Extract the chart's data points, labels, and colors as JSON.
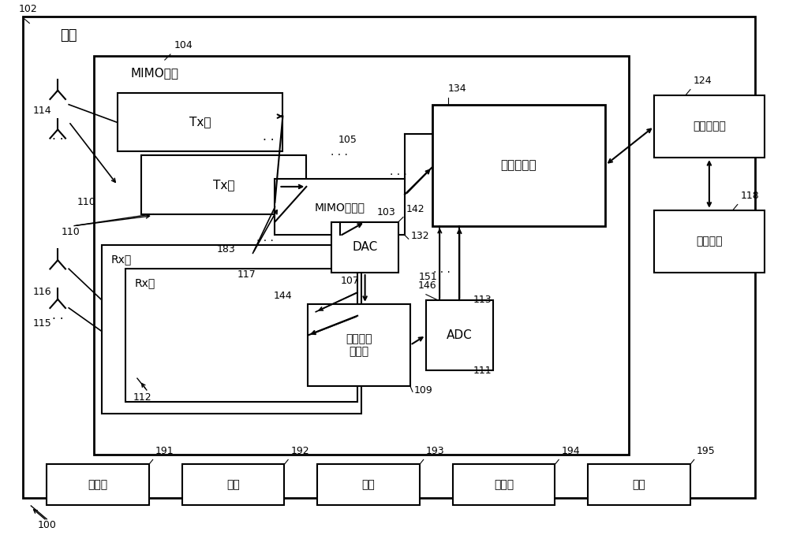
{
  "bg_color": "#ffffff",
  "line_color": "#000000",
  "labels": {
    "vehicle": "车辆",
    "mimo_radar": "MIMO雷达",
    "tx_chain": "Tx链",
    "rx_chain_outer": "Rx链",
    "rx_chain_inner": "Rx链",
    "mimo_filter": "MIMO滤波器",
    "radar_processor": "雷达处理器",
    "system_controller": "系统控制器",
    "vehicle_system": "车载系统",
    "dac": "DAC",
    "adc": "ADC",
    "analog_combiner": "模拟信号\n组合器",
    "processor": "处理器",
    "input": "输入",
    "output": "输出",
    "storage1": "存储器",
    "storage2": "存储"
  },
  "refs": {
    "r100": "100",
    "r102": "102",
    "r103": "103",
    "r104": "104",
    "r105": "105",
    "r107": "107",
    "r109": "109",
    "r110": "110",
    "r111": "111",
    "r112": "112",
    "r113": "113",
    "r114": "114",
    "r115": "115",
    "r116": "116",
    "r117": "117",
    "r118": "118",
    "r124": "124",
    "r132": "132",
    "r134": "134",
    "r142": "142",
    "r144": "144",
    "r146": "146",
    "r151": "151",
    "r183": "183",
    "r191": "191",
    "r192": "192",
    "r193": "193",
    "r194": "194",
    "r195": "195"
  }
}
